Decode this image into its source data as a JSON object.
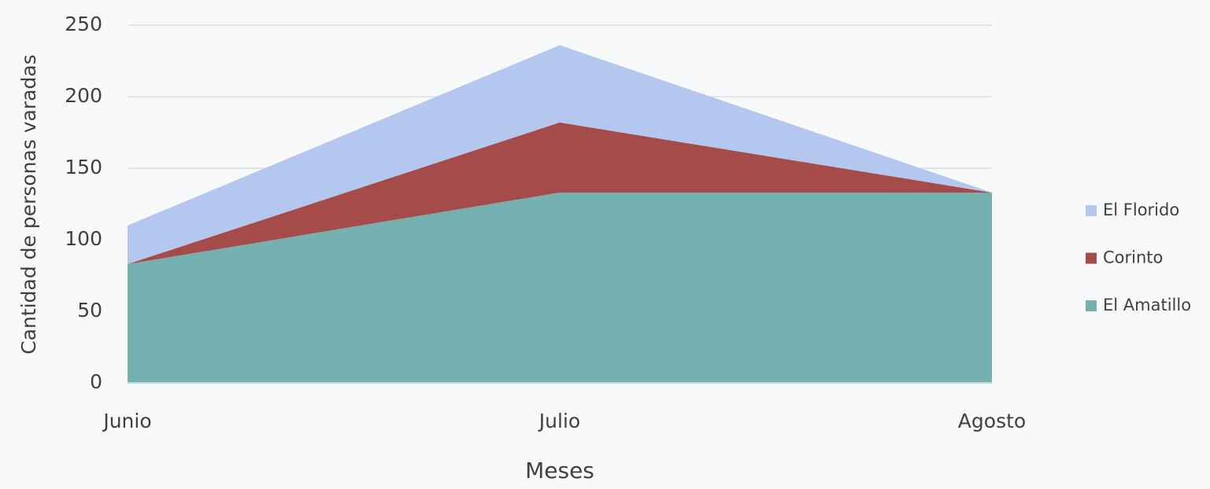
{
  "chart_data": {
    "type": "stacked_area",
    "x_label": "Meses",
    "y_label": "Cantidad de personas varadas",
    "categories": [
      "Junio",
      "Julio",
      "Agosto"
    ],
    "series": [
      {
        "name": "El Amatillo",
        "color": "#74b1b0",
        "values": [
          83,
          133,
          133
        ]
      },
      {
        "name": "Corinto",
        "color": "#a54c4a",
        "values": [
          0,
          49,
          0
        ]
      },
      {
        "name": "El Florido",
        "color": "#b4c7ee",
        "values": [
          27,
          54,
          0
        ]
      }
    ],
    "ylim": [
      0,
      250
    ],
    "yticks": [
      0,
      50,
      100,
      150,
      200,
      250
    ],
    "grid": true,
    "legend": "right"
  }
}
